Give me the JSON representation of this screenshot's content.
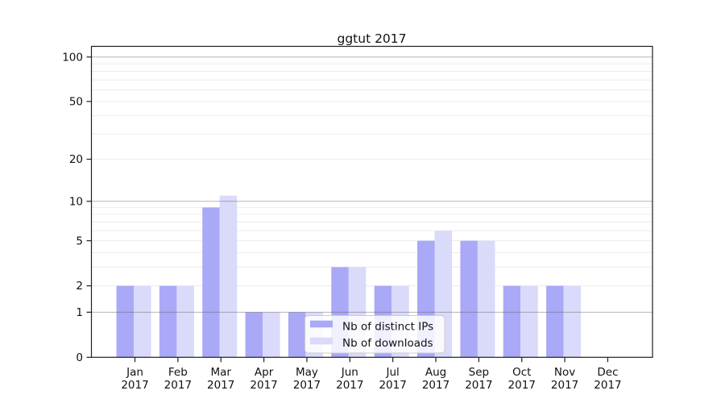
{
  "chart_data": {
    "type": "bar",
    "title": "ggtut 2017",
    "categories": [
      "Jan 2017",
      "Feb 2017",
      "Mar 2017",
      "Apr 2017",
      "May 2017",
      "Jun 2017",
      "Jul 2017",
      "Aug 2017",
      "Sep 2017",
      "Oct 2017",
      "Nov 2017",
      "Dec 2017"
    ],
    "series": [
      {
        "name": "Nb of distinct IPs",
        "color": "#a9a9f7",
        "values": [
          2,
          2,
          9,
          1,
          1,
          3,
          2,
          5,
          5,
          2,
          2,
          0
        ]
      },
      {
        "name": "Nb of downloads",
        "color": "#dadafa",
        "values": [
          2,
          2,
          11,
          1,
          1,
          3,
          2,
          6,
          5,
          2,
          2,
          0
        ]
      }
    ],
    "yscale": "log1p",
    "ylim": [
      0,
      118
    ],
    "yticks": [
      0,
      1,
      2,
      5,
      10,
      20,
      50,
      100
    ],
    "ytick_labels": [
      "0",
      "1",
      "2",
      "5",
      "10",
      "20",
      "50",
      "100"
    ],
    "grid_minor_values": [
      2,
      3,
      4,
      5,
      6,
      7,
      8,
      9,
      20,
      30,
      40,
      50,
      60,
      70,
      80,
      90
    ],
    "grid_decade_values": [
      1,
      10,
      100
    ],
    "grid": true,
    "legend_position": "lower center-left, inside plot",
    "colors": {
      "bar_distinct_ips": "#a9a9f7",
      "bar_downloads": "#dadafa",
      "grid_minor": "#ececec",
      "grid_decade": "#b9b9b9",
      "spine": "#1f1f1f",
      "tick": "#1f1f1f",
      "legend_border": "#cccccc",
      "legend_bg": "#ffffff"
    }
  }
}
